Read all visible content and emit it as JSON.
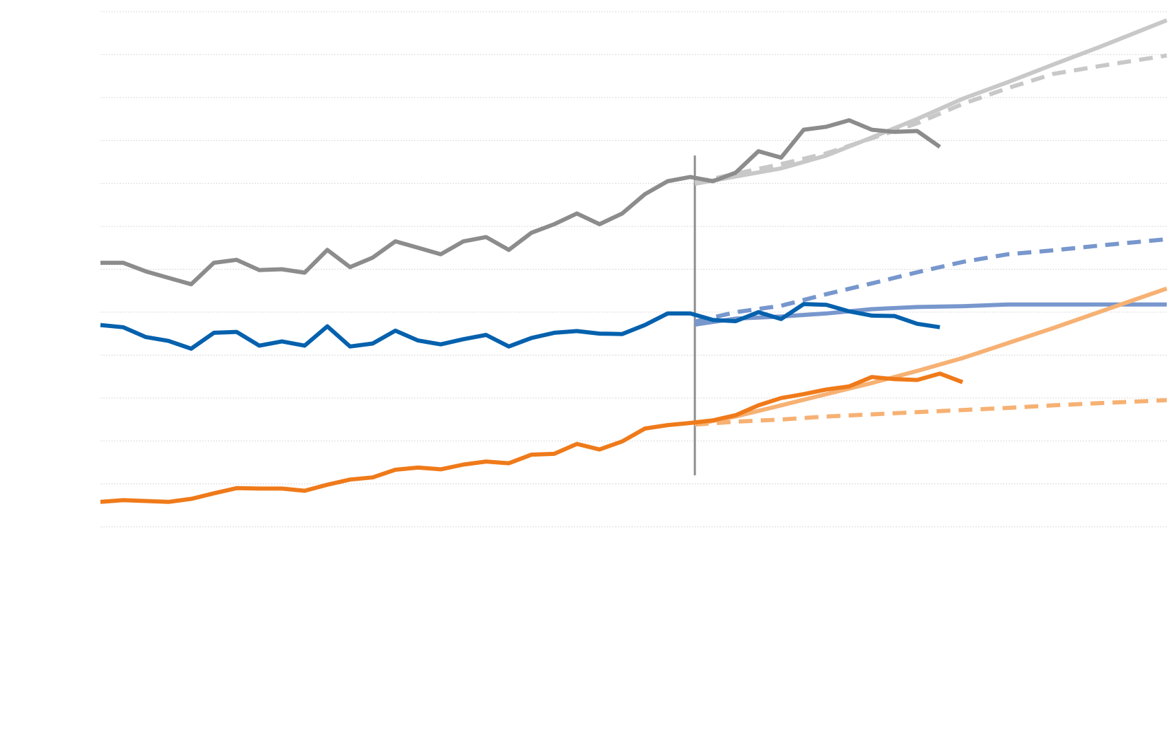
{
  "chart_data": {
    "type": "line",
    "title": "",
    "xlabel": "",
    "ylabel": "",
    "x": [
      0,
      1,
      2,
      3,
      4,
      5,
      6,
      7,
      8,
      9,
      10,
      11,
      12,
      13,
      14,
      15,
      16,
      17,
      18,
      19,
      20,
      21,
      22,
      23,
      24,
      25,
      26,
      27,
      28,
      29,
      30,
      31,
      32,
      33,
      34,
      35,
      36,
      37,
      38,
      39,
      40,
      41,
      42,
      43,
      44,
      45,
      46,
      47
    ],
    "xlim": [
      0,
      47
    ],
    "ylim": [
      0,
      12
    ],
    "grid": true,
    "x_ticks_shown": false,
    "y_ticks_shown": false,
    "reference_line": {
      "x": 26.2,
      "y_range": [
        1.2,
        8.65
      ],
      "color": "#8c8c8c"
    },
    "series": [
      {
        "color": "#8c8c8c",
        "style": "solid",
        "width": 6,
        "points": [
          [
            0,
            6.15
          ],
          [
            1,
            6.15
          ],
          [
            2,
            5.95
          ],
          [
            3,
            5.8
          ],
          [
            4,
            5.65
          ],
          [
            5,
            6.15
          ],
          [
            6,
            6.22
          ],
          [
            7,
            5.98
          ],
          [
            8,
            6.0
          ],
          [
            9,
            5.92
          ],
          [
            10,
            6.45
          ],
          [
            11,
            6.05
          ],
          [
            12,
            6.27
          ],
          [
            13,
            6.65
          ],
          [
            14,
            6.5
          ],
          [
            15,
            6.35
          ],
          [
            16,
            6.65
          ],
          [
            17,
            6.75
          ],
          [
            18,
            6.45
          ],
          [
            19,
            6.85
          ],
          [
            20,
            7.05
          ],
          [
            21,
            7.3
          ],
          [
            22,
            7.05
          ],
          [
            23,
            7.3
          ],
          [
            24,
            7.75
          ],
          [
            25,
            8.05
          ],
          [
            26,
            8.15
          ],
          [
            27,
            8.05
          ],
          [
            28,
            8.25
          ],
          [
            29,
            8.75
          ],
          [
            30,
            8.6
          ],
          [
            31,
            9.25
          ],
          [
            32,
            9.32
          ],
          [
            33,
            9.47
          ],
          [
            34,
            9.25
          ],
          [
            35,
            9.2
          ],
          [
            36,
            9.22
          ],
          [
            37,
            8.85
          ]
        ]
      },
      {
        "color": "#0561ad",
        "style": "solid",
        "width": 6,
        "points": [
          [
            0,
            4.7
          ],
          [
            1,
            4.65
          ],
          [
            2,
            4.42
          ],
          [
            3,
            4.33
          ],
          [
            4,
            4.15
          ],
          [
            5,
            4.52
          ],
          [
            6,
            4.54
          ],
          [
            7,
            4.22
          ],
          [
            8,
            4.32
          ],
          [
            9,
            4.22
          ],
          [
            10,
            4.67
          ],
          [
            11,
            4.2
          ],
          [
            12,
            4.27
          ],
          [
            13,
            4.57
          ],
          [
            14,
            4.34
          ],
          [
            15,
            4.25
          ],
          [
            16,
            4.37
          ],
          [
            17,
            4.47
          ],
          [
            18,
            4.2
          ],
          [
            19,
            4.4
          ],
          [
            20,
            4.52
          ],
          [
            21,
            4.56
          ],
          [
            22,
            4.5
          ],
          [
            23,
            4.49
          ],
          [
            24,
            4.7
          ],
          [
            25,
            4.97
          ],
          [
            26,
            4.97
          ],
          [
            27,
            4.82
          ],
          [
            28,
            4.79
          ],
          [
            29,
            5.0
          ],
          [
            30,
            4.84
          ],
          [
            31,
            5.19
          ],
          [
            32,
            5.17
          ],
          [
            33,
            5.02
          ],
          [
            34,
            4.92
          ],
          [
            35,
            4.91
          ],
          [
            36,
            4.73
          ],
          [
            37,
            4.65
          ]
        ]
      },
      {
        "color": "#ef7a1a",
        "style": "solid",
        "width": 6,
        "points": [
          [
            0,
            0.58
          ],
          [
            1,
            0.62
          ],
          [
            2,
            0.6
          ],
          [
            3,
            0.58
          ],
          [
            4,
            0.65
          ],
          [
            5,
            0.78
          ],
          [
            6,
            0.9
          ],
          [
            7,
            0.89
          ],
          [
            8,
            0.89
          ],
          [
            9,
            0.84
          ],
          [
            10,
            0.98
          ],
          [
            11,
            1.1
          ],
          [
            12,
            1.15
          ],
          [
            13,
            1.33
          ],
          [
            14,
            1.38
          ],
          [
            15,
            1.34
          ],
          [
            16,
            1.45
          ],
          [
            17,
            1.52
          ],
          [
            18,
            1.48
          ],
          [
            19,
            1.68
          ],
          [
            20,
            1.7
          ],
          [
            21,
            1.93
          ],
          [
            22,
            1.8
          ],
          [
            23,
            1.99
          ],
          [
            24,
            2.29
          ],
          [
            25,
            2.37
          ],
          [
            26,
            2.42
          ],
          [
            27,
            2.48
          ],
          [
            28,
            2.6
          ],
          [
            29,
            2.83
          ],
          [
            30,
            3.0
          ],
          [
            31,
            3.09
          ],
          [
            32,
            3.2
          ],
          [
            33,
            3.27
          ],
          [
            34,
            3.49
          ],
          [
            35,
            3.44
          ],
          [
            36,
            3.42
          ],
          [
            37,
            3.57
          ],
          [
            38,
            3.37
          ]
        ]
      },
      {
        "color": "#c8c8c8",
        "style": "solid",
        "width": 6,
        "points": [
          [
            26.2,
            7.99
          ],
          [
            30,
            8.35
          ],
          [
            32,
            8.65
          ],
          [
            34,
            9.07
          ],
          [
            36,
            9.5
          ],
          [
            38,
            9.97
          ],
          [
            40,
            10.36
          ],
          [
            42,
            10.77
          ],
          [
            44,
            11.17
          ],
          [
            47,
            11.8
          ]
        ]
      },
      {
        "color": "#c8c8c8",
        "style": "dashed",
        "width": 6,
        "points": [
          [
            26.2,
            8.02
          ],
          [
            30,
            8.45
          ],
          [
            32,
            8.7
          ],
          [
            34,
            9.05
          ],
          [
            36,
            9.4
          ],
          [
            38,
            9.85
          ],
          [
            40,
            10.22
          ],
          [
            42,
            10.55
          ],
          [
            44,
            10.73
          ],
          [
            47,
            10.98
          ]
        ]
      },
      {
        "color": "#7797cd",
        "style": "solid",
        "width": 6,
        "points": [
          [
            26.2,
            4.71
          ],
          [
            28,
            4.85
          ],
          [
            30,
            4.9
          ],
          [
            32,
            4.97
          ],
          [
            34,
            5.07
          ],
          [
            36,
            5.12
          ],
          [
            38,
            5.14
          ],
          [
            40,
            5.18
          ],
          [
            42,
            5.18
          ],
          [
            44,
            5.18
          ],
          [
            47,
            5.18
          ]
        ]
      },
      {
        "color": "#7797cd",
        "style": "dashed",
        "width": 6,
        "points": [
          [
            26.2,
            4.78
          ],
          [
            28,
            5.0
          ],
          [
            30,
            5.15
          ],
          [
            32,
            5.42
          ],
          [
            34,
            5.67
          ],
          [
            36,
            5.93
          ],
          [
            38,
            6.17
          ],
          [
            40,
            6.35
          ],
          [
            42,
            6.44
          ],
          [
            44,
            6.55
          ],
          [
            47,
            6.7
          ]
        ]
      },
      {
        "color": "#f6b173",
        "style": "solid",
        "width": 6,
        "points": [
          [
            26.2,
            2.38
          ],
          [
            28,
            2.57
          ],
          [
            30,
            2.83
          ],
          [
            32,
            3.09
          ],
          [
            34,
            3.35
          ],
          [
            36,
            3.63
          ],
          [
            38,
            3.93
          ],
          [
            40,
            4.28
          ],
          [
            42,
            4.63
          ],
          [
            44,
            5.0
          ],
          [
            47,
            5.55
          ]
        ]
      },
      {
        "color": "#f6b173",
        "style": "dashed",
        "width": 6,
        "points": [
          [
            26.2,
            2.38
          ],
          [
            28,
            2.45
          ],
          [
            30,
            2.5
          ],
          [
            32,
            2.57
          ],
          [
            34,
            2.62
          ],
          [
            36,
            2.67
          ],
          [
            38,
            2.72
          ],
          [
            40,
            2.77
          ],
          [
            42,
            2.83
          ],
          [
            44,
            2.88
          ],
          [
            47,
            2.95
          ]
        ]
      }
    ]
  }
}
